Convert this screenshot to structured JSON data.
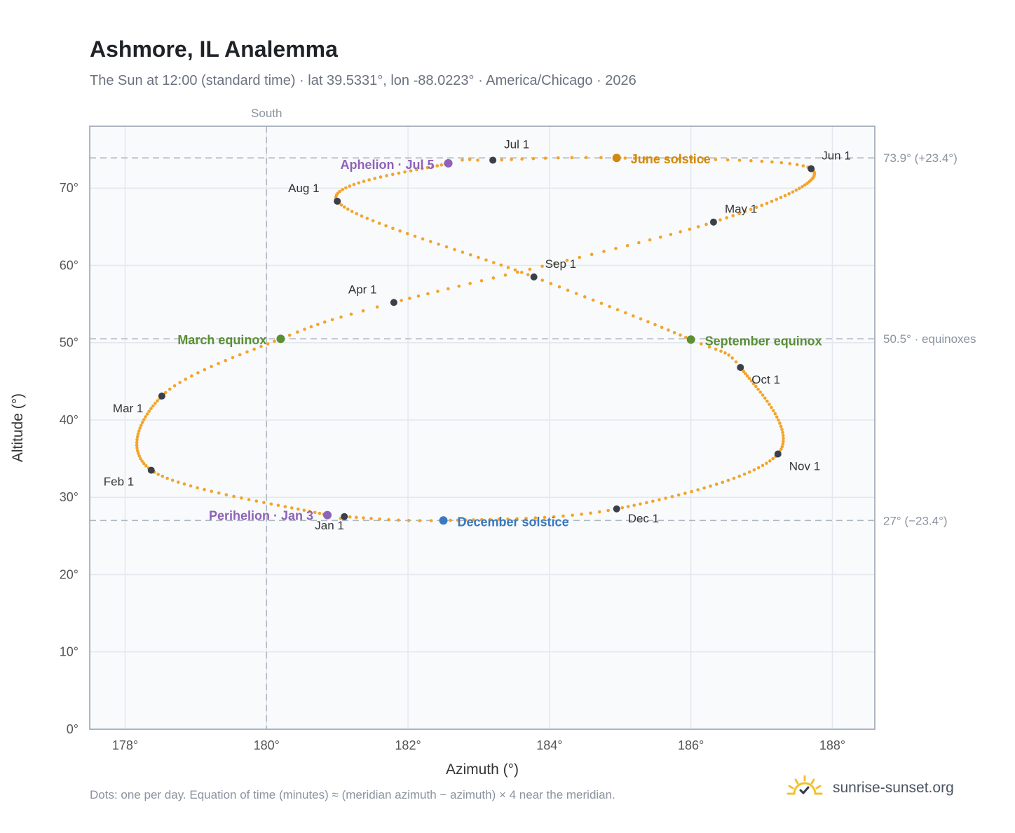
{
  "header": {
    "title": "Ashmore, IL Analemma",
    "subtitle": "The Sun at 12:00 (standard time) · lat 39.5331°, lon -88.0223° · America/Chicago · 2026"
  },
  "footer": {
    "note": "Dots: one per day. Equation of time (minutes) ≈ (meridian azimuth − azimuth) × 4 near the meridian.",
    "brand": "sunrise-sunset.org"
  },
  "colors": {
    "path": "#f3a42a",
    "month_dot": "#3a3f4b",
    "apsis": "#8e62b8",
    "june_solstice": "#d08a10",
    "december_solstice": "#3a78c0",
    "equinox": "#5a8f33",
    "reference_line": "#aeb8c2",
    "plot_bg": "#f8fafc"
  },
  "chart_data": {
    "type": "scatter",
    "xlabel": "Azimuth (°)",
    "ylabel": "Altitude (°)",
    "xlim": [
      177.5,
      188.6
    ],
    "ylim": [
      0,
      78
    ],
    "x_ticks": [
      "178°",
      "180°",
      "182°",
      "184°",
      "186°",
      "188°"
    ],
    "y_ticks": [
      "0°",
      "10°",
      "20°",
      "30°",
      "40°",
      "50°",
      "60°",
      "70°"
    ],
    "grid": true,
    "meridian": {
      "azimuth": 180,
      "label": "South"
    },
    "reference_lines": [
      {
        "altitude": 73.9,
        "label": "73.9° (+23.4°)"
      },
      {
        "altitude": 50.5,
        "label": "50.5° · equinoxes"
      },
      {
        "altitude": 27.0,
        "label": "27° (−23.4°)"
      }
    ],
    "month_points": [
      {
        "label": "Jan 1",
        "az": 181.1,
        "alt": 27.5
      },
      {
        "label": "Feb 1",
        "az": 178.37,
        "alt": 33.5
      },
      {
        "label": "Mar 1",
        "az": 178.52,
        "alt": 43.1
      },
      {
        "label": "Apr 1",
        "az": 181.8,
        "alt": 55.2
      },
      {
        "label": "May 1",
        "az": 186.32,
        "alt": 65.6
      },
      {
        "label": "Jun 1",
        "az": 187.7,
        "alt": 72.5
      },
      {
        "label": "Jul 1",
        "az": 183.2,
        "alt": 73.6
      },
      {
        "label": "Aug 1",
        "az": 181.0,
        "alt": 68.3
      },
      {
        "label": "Sep 1",
        "az": 183.78,
        "alt": 58.5
      },
      {
        "label": "Oct 1",
        "az": 186.7,
        "alt": 46.8
      },
      {
        "label": "Nov 1",
        "az": 187.23,
        "alt": 35.6
      },
      {
        "label": "Dec 1",
        "az": 184.95,
        "alt": 28.5
      }
    ],
    "events": [
      {
        "label": "Perihelion · Jan 3",
        "az": 180.86,
        "alt": 27.7,
        "kind": "apsis"
      },
      {
        "label": "March equinox",
        "az": 180.2,
        "alt": 50.5,
        "kind": "equinox"
      },
      {
        "label": "June solstice",
        "az": 184.95,
        "alt": 73.9,
        "kind": "june_solstice"
      },
      {
        "label": "Aphelion · Jul 5",
        "az": 182.57,
        "alt": 73.2,
        "kind": "apsis"
      },
      {
        "label": "September equinox",
        "az": 186.0,
        "alt": 50.4,
        "kind": "equinox"
      },
      {
        "label": "December solstice",
        "az": 182.5,
        "alt": 27.0,
        "kind": "december_solstice"
      }
    ]
  }
}
